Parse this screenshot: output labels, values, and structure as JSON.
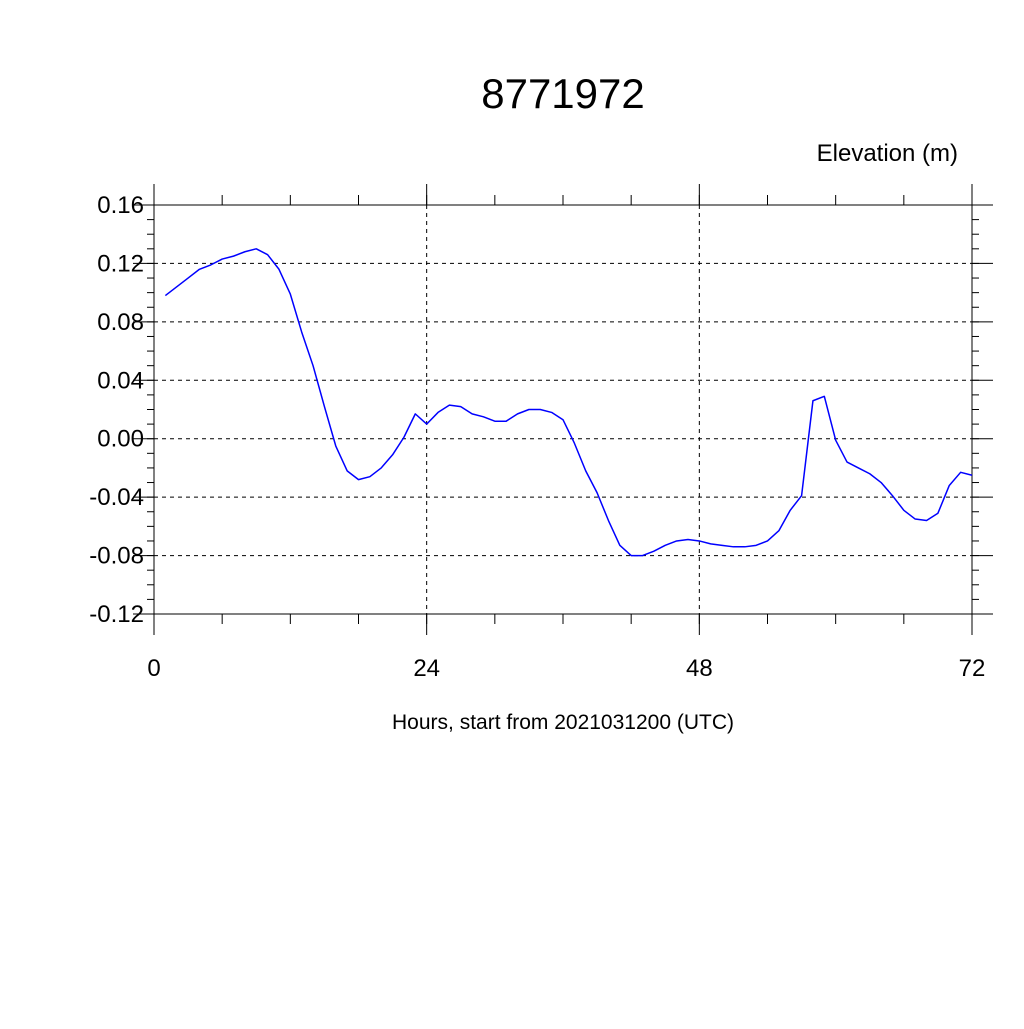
{
  "chart_data": {
    "type": "line",
    "title": "8771972",
    "subtitle": "Elevation (m)",
    "xlabel": "Hours, start from 2021031200 (UTC)",
    "ylabel": "",
    "xlim": [
      0,
      72
    ],
    "ylim": [
      -0.12,
      0.16
    ],
    "xticks": [
      0,
      24,
      48,
      72
    ],
    "yticks": [
      -0.12,
      -0.08,
      -0.04,
      0.0,
      0.04,
      0.08,
      0.12,
      0.16
    ],
    "xtick_labels": [
      "0",
      "24",
      "48",
      "72"
    ],
    "ytick_labels": [
      "-0.12",
      "-0.08",
      "-0.04",
      "0.00",
      "0.04",
      "0.08",
      "0.12",
      "0.16"
    ],
    "grid": true,
    "line_color": "#0000ff",
    "series": [
      {
        "x": [
          1,
          2,
          3,
          4,
          5,
          6,
          7,
          8,
          9,
          10,
          11,
          12,
          13,
          14,
          15,
          16,
          17,
          18,
          19,
          20,
          21,
          22,
          23,
          24,
          25,
          26,
          27,
          28,
          29,
          30,
          31,
          32,
          33,
          34,
          35,
          36,
          37,
          38,
          39,
          40,
          41,
          42,
          43,
          44,
          45,
          46,
          47,
          48,
          49,
          50,
          51,
          52,
          53,
          54,
          55,
          56,
          57,
          58,
          59,
          60,
          61,
          62,
          63,
          64,
          65,
          66,
          67,
          68,
          69,
          70,
          71,
          72
        ],
        "values": [
          0.098,
          0.104,
          0.11,
          0.116,
          0.119,
          0.123,
          0.125,
          0.128,
          0.13,
          0.126,
          0.116,
          0.099,
          0.073,
          0.05,
          0.022,
          -0.005,
          -0.022,
          -0.028,
          -0.026,
          -0.02,
          -0.011,
          0.001,
          0.017,
          0.01,
          0.018,
          0.023,
          0.022,
          0.017,
          0.015,
          0.012,
          0.012,
          0.017,
          0.02,
          0.02,
          0.018,
          0.013,
          -0.003,
          -0.022,
          -0.037,
          -0.056,
          -0.073,
          -0.08,
          -0.08,
          -0.077,
          -0.073,
          -0.07,
          -0.069,
          -0.07,
          -0.072,
          -0.073,
          -0.074,
          -0.074,
          -0.073,
          -0.07,
          -0.063,
          -0.049,
          -0.039,
          0.026,
          0.029,
          -0.001,
          -0.016,
          -0.02,
          -0.024,
          -0.03,
          -0.039,
          -0.049,
          -0.055,
          -0.056,
          -0.051,
          -0.032,
          -0.023,
          -0.025
        ]
      }
    ]
  }
}
